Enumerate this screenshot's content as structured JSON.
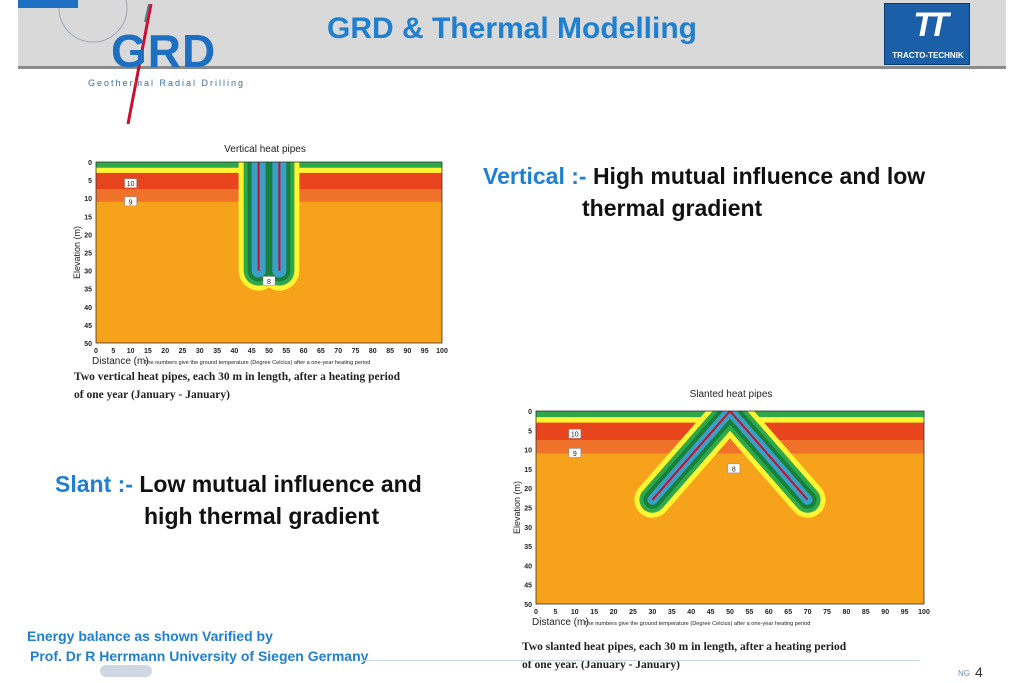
{
  "title": "GRD & Thermal Modelling",
  "grd_logo": {
    "letters": "GRD",
    "subtitle": "Geothermal Radial Drilling"
  },
  "tt_logo": {
    "mark": "TT",
    "name": "TRACTO-TECHNIK"
  },
  "vertical_statement": {
    "key": "Vertical :-",
    "line1": "High mutual influence and low",
    "line2": "thermal gradient"
  },
  "slant_statement": {
    "key": "Slant :-",
    "line1": "Low mutual influence and",
    "line2": "high thermal gradient"
  },
  "energy_note": {
    "line1": "Energy balance as shown Varified by",
    "line2": "Prof. Dr R Herrmann University of Siegen Germany"
  },
  "footer": {
    "ng": "NG",
    "page": "4"
  },
  "colors": {
    "accent": "#1f7fd1",
    "deep_red": "#e8451e",
    "orange": "#f7a21b",
    "yellow": "#fff533",
    "green": "#2ea84a",
    "dark_green": "#17803a"
  },
  "chart_data": [
    {
      "type": "heatmap",
      "title": "Vertical heat pipes",
      "xlabel": "Distance (m)",
      "note": "The numbers give the ground temperature (Degree Celcius) after a one-year heating period",
      "ylabel": "Elevation (m)",
      "xlim": [
        0,
        100
      ],
      "ylim": [
        0,
        50
      ],
      "x_ticks": [
        "0",
        "5",
        "10",
        "15",
        "20",
        "25",
        "30",
        "35",
        "40",
        "45",
        "50",
        "55",
        "60",
        "65",
        "70",
        "75",
        "80",
        "85",
        "90",
        "95",
        "100"
      ],
      "y_ticks": [
        "0",
        "5",
        "10",
        "15",
        "20",
        "25",
        "30",
        "35",
        "40",
        "45",
        "50"
      ],
      "isotherm_labels": [
        {
          "text": "10",
          "x": 10,
          "y": 6
        },
        {
          "text": "9",
          "x": 10,
          "y": 11
        },
        {
          "text": "8",
          "x": 50,
          "y": 33
        }
      ],
      "pipes": [
        {
          "x1": 47,
          "y1": 0,
          "x2": 47,
          "y2": 30
        },
        {
          "x1": 53,
          "y1": 0,
          "x2": 53,
          "y2": 30
        }
      ],
      "caption_line1": "Two vertical heat pipes, each 30 m in length, after a heating period",
      "caption_line2": "of one year (January - January)"
    },
    {
      "type": "heatmap",
      "title": "Slanted heat pipes",
      "xlabel": "Distance (m)",
      "note": "The numbers give the ground temperature (Degree Celcius) after a one-year heating period",
      "ylabel": "Elevation (m)",
      "xlim": [
        0,
        100
      ],
      "ylim": [
        0,
        50
      ],
      "x_ticks": [
        "0",
        "5",
        "10",
        "15",
        "20",
        "25",
        "30",
        "35",
        "40",
        "45",
        "50",
        "55",
        "60",
        "65",
        "70",
        "75",
        "80",
        "85",
        "90",
        "95",
        "100"
      ],
      "y_ticks": [
        "0",
        "5",
        "10",
        "15",
        "20",
        "25",
        "30",
        "35",
        "40",
        "45",
        "50"
      ],
      "isotherm_labels": [
        {
          "text": "10",
          "x": 10,
          "y": 6
        },
        {
          "text": "9",
          "x": 10,
          "y": 11
        },
        {
          "text": "8",
          "x": 51,
          "y": 15
        }
      ],
      "pipes": [
        {
          "x1": 50,
          "y1": 0,
          "x2": 30,
          "y2": 23
        },
        {
          "x1": 50,
          "y1": 0,
          "x2": 70,
          "y2": 23
        }
      ],
      "caption_line1": "Two slanted heat pipes, each 30 m in length, after a heating period",
      "caption_line2": "of one year. (January - January)"
    }
  ]
}
